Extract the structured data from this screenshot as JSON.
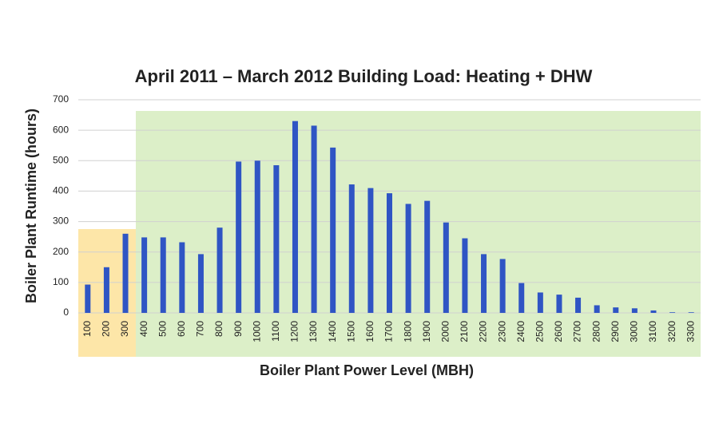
{
  "chart_data": {
    "type": "bar",
    "title": "April 2011 – March 2012 Building  Load:  Heating + DHW",
    "x_label": "Boiler Plant Power Level (MBH)",
    "y_label": "Boiler Plant Runtime (hours)",
    "categories": [
      "100",
      "200",
      "300",
      "400",
      "500",
      "600",
      "700",
      "800",
      "900",
      "1000",
      "1100",
      "1200",
      "1300",
      "1400",
      "1500",
      "1600",
      "1700",
      "1800",
      "1900",
      "2000",
      "2100",
      "2200",
      "2300",
      "2400",
      "2500",
      "2600",
      "2700",
      "2800",
      "2900",
      "3000",
      "3100",
      "3200",
      "3300"
    ],
    "values": [
      93,
      150,
      260,
      248,
      248,
      232,
      193,
      280,
      497,
      500,
      485,
      630,
      615,
      543,
      422,
      410,
      393,
      358,
      368,
      297,
      245,
      193,
      177,
      98,
      67,
      60,
      50,
      25,
      18,
      15,
      8,
      2,
      2
    ],
    "color": "#2f55c4",
    "ylim": [
      0,
      700
    ],
    "yticks": [
      0,
      100,
      200,
      300,
      400,
      500,
      600,
      700
    ],
    "grid": true
  }
}
